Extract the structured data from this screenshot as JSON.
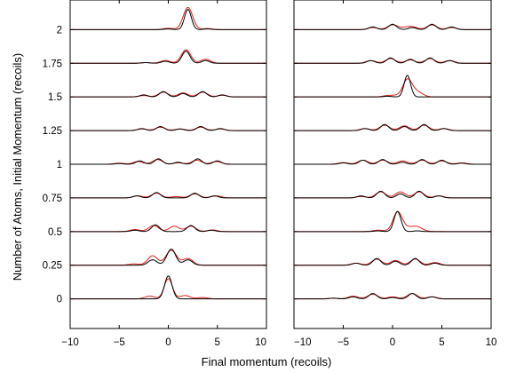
{
  "chart_data": {
    "type": "line",
    "xlabel": "Final momentum (recoils)",
    "ylabel": "Number of Atoms, Initial Momentum (recoils)",
    "shared_y_ticks": [
      "0",
      "0.25",
      "0.5",
      "0.75",
      "1",
      "1.25",
      "1.5",
      "1.75",
      "2"
    ],
    "x_tick_values": [
      -10,
      -5,
      0,
      5,
      10
    ],
    "x_tick_labels": [
      "−10",
      "−5",
      "0",
      "5",
      "10"
    ],
    "x_tick_labels_right": [
      "−10",
      "−5",
      "0",
      "5",
      "10"
    ],
    "xlim": [
      -10,
      10
    ],
    "ylim": [
      -0.22,
      2.22
    ],
    "grid": false,
    "series_colors": {
      "model": "#000000",
      "experiment": "#e0201a"
    },
    "panels": [
      {
        "panel": "left",
        "traces": [
          {
            "offset": 0,
            "black_peaks": [
              [
                0,
                0.17,
                0.38
              ]
            ],
            "red_peaks": [
              [
                0,
                0.15,
                0.42
              ],
              [
                -1.9,
                0.02,
                0.5
              ],
              [
                1.7,
                0.025,
                0.5
              ],
              [
                3.5,
                0.01,
                0.5
              ]
            ]
          },
          {
            "offset": 0.25,
            "black_peaks": [
              [
                0.3,
                0.12,
                0.45
              ],
              [
                -1.6,
                0.04,
                0.45
              ],
              [
                2,
                0.04,
                0.45
              ]
            ],
            "red_peaks": [
              [
                0.3,
                0.11,
                0.55
              ],
              [
                -1.6,
                0.07,
                0.5
              ],
              [
                2,
                0.05,
                0.5
              ],
              [
                -3.5,
                0.01,
                0.5
              ]
            ]
          },
          {
            "offset": 0.5,
            "black_peaks": [
              [
                -1.3,
                0.05,
                0.4
              ],
              [
                2.3,
                0.045,
                0.4
              ],
              [
                4.4,
                0.01,
                0.4
              ],
              [
                -3.4,
                0.01,
                0.4
              ]
            ],
            "red_peaks": [
              [
                -1.5,
                0.045,
                0.5
              ],
              [
                2.3,
                0.04,
                0.5
              ],
              [
                0.6,
                0.04,
                0.5
              ],
              [
                -3.4,
                0.015,
                0.5
              ],
              [
                4.5,
                0.012,
                0.5
              ]
            ]
          },
          {
            "offset": 0.75,
            "black_peaks": [
              [
                -1.2,
                0.04,
                0.4
              ],
              [
                2.7,
                0.035,
                0.4
              ],
              [
                -3.2,
                0.015,
                0.4
              ],
              [
                4.7,
                0.015,
                0.4
              ]
            ],
            "red_peaks": [
              [
                -1.2,
                0.035,
                0.5
              ],
              [
                2.7,
                0.03,
                0.5
              ],
              [
                0.8,
                0.01,
                0.5
              ],
              [
                -3.1,
                0.015,
                0.5
              ],
              [
                4.9,
                0.015,
                0.5
              ]
            ]
          },
          {
            "offset": 1,
            "black_peaks": [
              [
                -1,
                0.04,
                0.4
              ],
              [
                3,
                0.04,
                0.4
              ],
              [
                -2.9,
                0.025,
                0.4
              ],
              [
                5,
                0.025,
                0.4
              ],
              [
                1,
                0.015,
                0.4
              ],
              [
                -5,
                0.005,
                0.4
              ]
            ],
            "red_peaks": [
              [
                -1.1,
                0.035,
                0.5
              ],
              [
                2.9,
                0.03,
                0.5
              ],
              [
                -3.1,
                0.02,
                0.5
              ],
              [
                4.9,
                0.02,
                0.5
              ],
              [
                1,
                0.01,
                0.5
              ],
              [
                -5,
                0.008,
                0.5
              ]
            ]
          },
          {
            "offset": 1.25,
            "black_peaks": [
              [
                -0.8,
                0.03,
                0.4
              ],
              [
                3.3,
                0.03,
                0.4
              ],
              [
                -2.7,
                0.015,
                0.4
              ],
              [
                5.3,
                0.015,
                0.4
              ],
              [
                1.2,
                0.012,
                0.4
              ]
            ],
            "red_peaks": [
              [
                -0.8,
                0.025,
                0.5
              ],
              [
                3.3,
                0.025,
                0.5
              ],
              [
                -2.7,
                0.012,
                0.5
              ],
              [
                5.3,
                0.012,
                0.5
              ],
              [
                1.2,
                0.012,
                0.5
              ]
            ]
          },
          {
            "offset": 1.5,
            "black_peaks": [
              [
                -0.5,
                0.04,
                0.4
              ],
              [
                3.5,
                0.04,
                0.4
              ],
              [
                1.5,
                0.025,
                0.4
              ],
              [
                -2.5,
                0.015,
                0.4
              ],
              [
                5.5,
                0.015,
                0.4
              ]
            ],
            "red_peaks": [
              [
                -0.5,
                0.035,
                0.5
              ],
              [
                3.5,
                0.035,
                0.5
              ],
              [
                1.5,
                0.03,
                0.5
              ],
              [
                -2.5,
                0.01,
                0.5
              ],
              [
                5.5,
                0.012,
                0.5
              ]
            ]
          },
          {
            "offset": 1.75,
            "black_peaks": [
              [
                1.8,
                0.09,
                0.4
              ],
              [
                -0.3,
                0.015,
                0.4
              ],
              [
                3.8,
                0.02,
                0.4
              ],
              [
                -2.3,
                0.005,
                0.4
              ]
            ],
            "red_peaks": [
              [
                1.8,
                0.1,
                0.48
              ],
              [
                -0.3,
                0.02,
                0.5
              ],
              [
                3.8,
                0.03,
                0.5
              ],
              [
                -2.3,
                0.005,
                0.5
              ]
            ]
          },
          {
            "offset": 2,
            "black_peaks": [
              [
                2,
                0.15,
                0.35
              ],
              [
                0,
                0.005,
                0.4
              ],
              [
                4,
                0.005,
                0.4
              ]
            ],
            "red_peaks": [
              [
                2,
                0.165,
                0.48
              ],
              [
                0,
                0.01,
                0.5
              ],
              [
                4,
                0.008,
                0.5
              ]
            ]
          }
        ]
      },
      {
        "panel": "right",
        "traces": [
          {
            "offset": 0,
            "black_peaks": [
              [
                -2,
                0.04,
                0.4
              ],
              [
                2,
                0.04,
                0.4
              ],
              [
                0,
                0.01,
                0.4
              ],
              [
                -4,
                0.015,
                0.4
              ],
              [
                4,
                0.015,
                0.4
              ],
              [
                -6,
                0.005,
                0.4
              ]
            ],
            "red_peaks": [
              [
                -2,
                0.035,
                0.5
              ],
              [
                2,
                0.04,
                0.5
              ],
              [
                0,
                0.015,
                0.5
              ],
              [
                -4,
                0.02,
                0.5
              ],
              [
                4,
                0.015,
                0.5
              ],
              [
                -6,
                0.005,
                0.5
              ]
            ]
          },
          {
            "offset": 0.25,
            "black_peaks": [
              [
                -1.6,
                0.05,
                0.4
              ],
              [
                2.3,
                0.05,
                0.4
              ],
              [
                0.3,
                0.03,
                0.4
              ],
              [
                -3.7,
                0.015,
                0.4
              ],
              [
                4.3,
                0.015,
                0.4
              ]
            ],
            "red_peaks": [
              [
                -1.6,
                0.045,
                0.5
              ],
              [
                2.3,
                0.045,
                0.5
              ],
              [
                0.3,
                0.035,
                0.5
              ],
              [
                -3.7,
                0.015,
                0.5
              ],
              [
                4.3,
                0.02,
                0.5
              ]
            ]
          },
          {
            "offset": 0.5,
            "black_peaks": [
              [
                0.5,
                0.15,
                0.35
              ],
              [
                -1.5,
                0.005,
                0.4
              ],
              [
                2.5,
                0.005,
                0.4
              ]
            ],
            "red_peaks": [
              [
                0.5,
                0.13,
                0.45
              ],
              [
                1.5,
                0.03,
                1.0
              ],
              [
                -1.5,
                0.01,
                0.5
              ],
              [
                2.5,
                0.02,
                0.5
              ]
            ]
          },
          {
            "offset": 0.75,
            "black_peaks": [
              [
                -1.2,
                0.05,
                0.4
              ],
              [
                2.7,
                0.05,
                0.4
              ],
              [
                0.8,
                0.03,
                0.4
              ],
              [
                -3.2,
                0.015,
                0.4
              ],
              [
                4.7,
                0.015,
                0.4
              ]
            ],
            "red_peaks": [
              [
                -1.2,
                0.045,
                0.5
              ],
              [
                2.7,
                0.045,
                0.5
              ],
              [
                0.8,
                0.045,
                0.5
              ],
              [
                -3.2,
                0.01,
                0.5
              ],
              [
                4.7,
                0.015,
                0.5
              ]
            ]
          },
          {
            "offset": 1,
            "black_peaks": [
              [
                -1,
                0.035,
                0.4
              ],
              [
                3,
                0.035,
                0.4
              ],
              [
                -3,
                0.03,
                0.4
              ],
              [
                5,
                0.03,
                0.4
              ],
              [
                1,
                0.015,
                0.4
              ],
              [
                -5,
                0.01,
                0.4
              ],
              [
                7,
                0.008,
                0.4
              ]
            ],
            "red_peaks": [
              [
                -1,
                0.03,
                0.5
              ],
              [
                3,
                0.03,
                0.5
              ],
              [
                -3,
                0.03,
                0.5
              ],
              [
                5,
                0.025,
                0.5
              ],
              [
                1,
                0.025,
                0.5
              ],
              [
                -5,
                0.012,
                0.5
              ],
              [
                7,
                0.01,
                0.5
              ]
            ]
          },
          {
            "offset": 1.25,
            "black_peaks": [
              [
                -0.8,
                0.045,
                0.4
              ],
              [
                3.2,
                0.045,
                0.4
              ],
              [
                1.2,
                0.03,
                0.4
              ],
              [
                -2.8,
                0.015,
                0.4
              ],
              [
                5.2,
                0.015,
                0.4
              ]
            ],
            "red_peaks": [
              [
                -0.8,
                0.04,
                0.5
              ],
              [
                3.2,
                0.04,
                0.5
              ],
              [
                1.2,
                0.035,
                0.5
              ],
              [
                -2.8,
                0.015,
                0.5
              ],
              [
                5.2,
                0.015,
                0.5
              ]
            ]
          },
          {
            "offset": 1.5,
            "black_peaks": [
              [
                1.5,
                0.16,
                0.33
              ],
              [
                -0.5,
                0.005,
                0.4
              ]
            ],
            "red_peaks": [
              [
                1.5,
                0.12,
                0.45
              ],
              [
                2.4,
                0.04,
                0.6
              ],
              [
                0.5,
                0.01,
                0.5
              ],
              [
                -0.5,
                0.01,
                0.5
              ]
            ]
          },
          {
            "offset": 1.75,
            "black_peaks": [
              [
                -0.2,
                0.04,
                0.4
              ],
              [
                3.8,
                0.04,
                0.4
              ],
              [
                1.8,
                0.03,
                0.4
              ],
              [
                -2.2,
                0.02,
                0.4
              ],
              [
                5.8,
                0.02,
                0.4
              ]
            ],
            "red_peaks": [
              [
                -0.2,
                0.035,
                0.5
              ],
              [
                3.8,
                0.035,
                0.5
              ],
              [
                1.8,
                0.025,
                0.5
              ],
              [
                -2.2,
                0.02,
                0.5
              ],
              [
                5.8,
                0.02,
                0.5
              ]
            ]
          },
          {
            "offset": 2,
            "black_peaks": [
              [
                0,
                0.04,
                0.4
              ],
              [
                4,
                0.04,
                0.4
              ],
              [
                2,
                0.015,
                0.4
              ],
              [
                -2,
                0.02,
                0.4
              ],
              [
                6,
                0.02,
                0.4
              ]
            ],
            "red_peaks": [
              [
                0,
                0.035,
                0.5
              ],
              [
                4,
                0.035,
                0.5
              ],
              [
                2,
                0.02,
                0.5
              ],
              [
                -2,
                0.015,
                0.5
              ],
              [
                6,
                0.015,
                0.5
              ],
              [
                1.2,
                0.012,
                0.5
              ]
            ]
          }
        ]
      }
    ]
  }
}
